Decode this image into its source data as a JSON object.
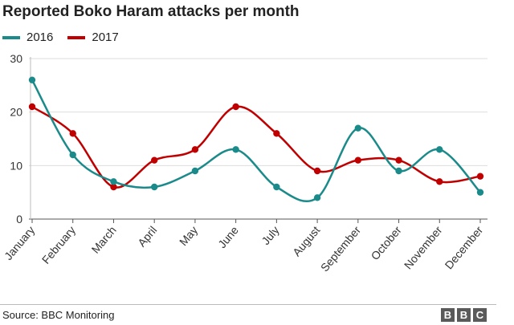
{
  "chart_data": {
    "type": "line",
    "title": "Reported Boko Haram attacks per month",
    "categories": [
      "January",
      "February",
      "March",
      "April",
      "May",
      "June",
      "July",
      "August",
      "September",
      "October",
      "November",
      "December"
    ],
    "series": [
      {
        "name": "2016",
        "color": "#1a8a8a",
        "values": [
          26,
          12,
          7,
          6,
          9,
          13,
          6,
          4,
          17,
          9,
          13,
          5
        ]
      },
      {
        "name": "2017",
        "color": "#c00000",
        "values": [
          21,
          16,
          6,
          11,
          13,
          21,
          16,
          9,
          11,
          11,
          7,
          8
        ]
      }
    ],
    "yticks": [
      0,
      10,
      20,
      30
    ],
    "ylim": [
      0,
      30
    ],
    "grid": true,
    "legend_position": "top-left",
    "xlabel": "",
    "ylabel": ""
  },
  "footer": {
    "source": "Source: BBC Monitoring",
    "logo": [
      "B",
      "B",
      "C"
    ]
  }
}
